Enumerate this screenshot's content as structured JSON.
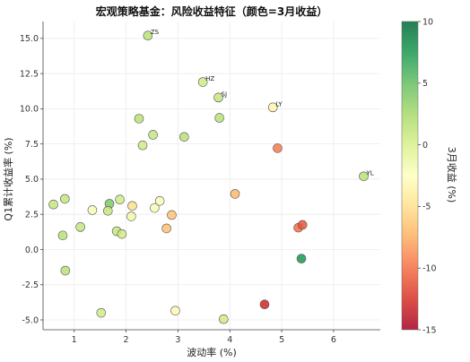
{
  "chart_data": {
    "type": "scatter",
    "title": "宏观策略基金：风险收益特征（颜色=3月收益）",
    "xlabel": "波动率 (%)",
    "ylabel": "Q1累计收益率 (%)",
    "xlim": [
      0.4,
      6.9
    ],
    "ylim": [
      -5.7,
      16.2
    ],
    "xticks": [
      1,
      2,
      3,
      4,
      5,
      6
    ],
    "yticks": [
      -5.0,
      -2.5,
      0.0,
      2.5,
      5.0,
      7.5,
      10.0,
      12.5,
      15.0
    ],
    "ytick_labels": [
      "-5.0",
      "-2.5",
      "0.0",
      "2.5",
      "5.0",
      "7.5",
      "10.0",
      "12.5",
      "15.0"
    ],
    "grid": true,
    "colorbar": {
      "label": "3月收益 (%)",
      "min": -15,
      "max": 10,
      "ticks": [
        10,
        5,
        0,
        -5,
        -10,
        -15
      ],
      "colormap": "RdYlGn"
    },
    "points": [
      {
        "x": 2.42,
        "y": 15.2,
        "c": 1.5,
        "label": "ZS"
      },
      {
        "x": 3.48,
        "y": 11.9,
        "c": 0.5,
        "label": "HZ"
      },
      {
        "x": 3.78,
        "y": 10.8,
        "c": 1.0,
        "label": "SJ"
      },
      {
        "x": 4.83,
        "y": 10.1,
        "c": -3.5,
        "label": "LY"
      },
      {
        "x": 6.58,
        "y": 5.2,
        "c": 1.5,
        "label": "YL"
      },
      {
        "x": 2.25,
        "y": 9.3,
        "c": 1.5,
        "label": ""
      },
      {
        "x": 3.8,
        "y": 9.35,
        "c": 1.5,
        "label": ""
      },
      {
        "x": 2.52,
        "y": 8.15,
        "c": 1.0,
        "label": ""
      },
      {
        "x": 3.12,
        "y": 8.0,
        "c": 1.5,
        "label": ""
      },
      {
        "x": 2.32,
        "y": 7.4,
        "c": 0.5,
        "label": ""
      },
      {
        "x": 4.92,
        "y": 7.2,
        "c": -9.5,
        "label": ""
      },
      {
        "x": 4.1,
        "y": 3.95,
        "c": -7.0,
        "label": ""
      },
      {
        "x": 0.82,
        "y": 3.6,
        "c": 1.0,
        "label": ""
      },
      {
        "x": 0.6,
        "y": 3.2,
        "c": 1.0,
        "label": ""
      },
      {
        "x": 1.88,
        "y": 3.55,
        "c": 0.5,
        "label": ""
      },
      {
        "x": 1.68,
        "y": 3.25,
        "c": 4.0,
        "label": ""
      },
      {
        "x": 2.65,
        "y": 3.45,
        "c": -2.0,
        "label": ""
      },
      {
        "x": 2.12,
        "y": 3.1,
        "c": -5.0,
        "label": ""
      },
      {
        "x": 1.35,
        "y": 2.8,
        "c": -2.0,
        "label": ""
      },
      {
        "x": 1.65,
        "y": 2.75,
        "c": 1.0,
        "label": ""
      },
      {
        "x": 2.55,
        "y": 2.95,
        "c": -2.0,
        "label": ""
      },
      {
        "x": 2.1,
        "y": 2.35,
        "c": -1.5,
        "label": ""
      },
      {
        "x": 2.88,
        "y": 2.45,
        "c": -6.5,
        "label": ""
      },
      {
        "x": 1.12,
        "y": 1.6,
        "c": 1.0,
        "label": ""
      },
      {
        "x": 2.78,
        "y": 1.5,
        "c": -6.5,
        "label": ""
      },
      {
        "x": 1.82,
        "y": 1.3,
        "c": 1.0,
        "label": ""
      },
      {
        "x": 0.78,
        "y": 1.0,
        "c": 1.5,
        "label": ""
      },
      {
        "x": 1.92,
        "y": 1.1,
        "c": 0.5,
        "label": ""
      },
      {
        "x": 5.32,
        "y": 1.55,
        "c": -10.0,
        "label": ""
      },
      {
        "x": 5.4,
        "y": 1.75,
        "c": -11.0,
        "label": ""
      },
      {
        "x": 5.38,
        "y": -0.65,
        "c": 7.5,
        "label": ""
      },
      {
        "x": 0.83,
        "y": -1.5,
        "c": 1.5,
        "label": ""
      },
      {
        "x": 4.67,
        "y": -3.9,
        "c": -13.0,
        "label": ""
      },
      {
        "x": 1.52,
        "y": -4.5,
        "c": 0.5,
        "label": ""
      },
      {
        "x": 2.95,
        "y": -4.35,
        "c": -3.0,
        "label": ""
      },
      {
        "x": 3.88,
        "y": -4.95,
        "c": 0.5,
        "label": ""
      }
    ]
  }
}
